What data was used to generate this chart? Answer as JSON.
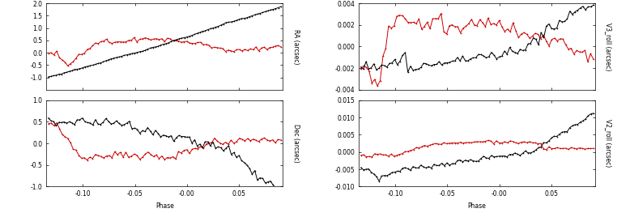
{
  "fig_width": 7.62,
  "fig_height": 2.68,
  "dpi": 100,
  "background": "#ffffff",
  "black_color": "#000000",
  "red_color": "#cc0000",
  "linewidth": 0.7,
  "markersize": 2.0,
  "markeredgewidth": 0.5,
  "tick_labelsize": 5.5,
  "axis_labelsize": 5.5,
  "phase_label": "Phase",
  "xlim": [
    -0.135,
    0.092
  ],
  "xticks": [
    -0.1,
    -0.05,
    -0.0,
    0.05
  ],
  "ylims_tl": [
    -1.5,
    2.0
  ],
  "ylims_bl": [
    -1.0,
    1.0
  ],
  "ylims_tr": [
    -0.004,
    0.004
  ],
  "ylims_br": [
    -0.01,
    0.015
  ],
  "yticks_tl": [
    -1.0,
    -0.5,
    0.0,
    0.5,
    1.0,
    1.5,
    2.0
  ],
  "yticks_bl": [
    -1.0,
    -0.5,
    0.0,
    0.5,
    1.0
  ],
  "yticks_tr": [
    -0.004,
    -0.002,
    0.0,
    0.002,
    0.004
  ],
  "yticks_br": [
    -0.01,
    -0.005,
    0.0,
    0.005,
    0.01,
    0.015
  ],
  "ylabel_tl": "RA (arcsec)",
  "ylabel_bl": "Dec (arcsec)",
  "ylabel_tr": "V3_roll (arcsec)",
  "ylabel_br": "V2_roll (arcsec)"
}
